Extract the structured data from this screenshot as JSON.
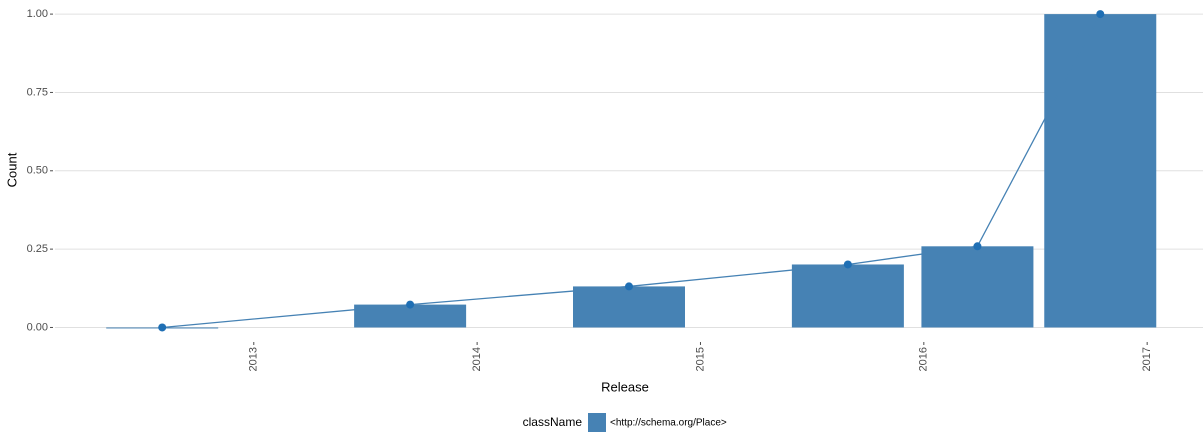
{
  "chart_data": {
    "type": "bar_line",
    "x_label": "Release",
    "y_label": "Count",
    "x": [
      2012.59,
      2013.7,
      2014.68,
      2015.66,
      2016.24,
      2016.79
    ],
    "series": [
      {
        "name": "<http://schema.org/Place>",
        "color": "#4682b4",
        "values": [
          0,
          0.073,
          0.131,
          0.201,
          0.259,
          1.0
        ]
      }
    ],
    "legend_title": "className",
    "xlim": [
      2012.11,
      2017.25
    ],
    "xticks": [
      2013,
      2014,
      2015,
      2016,
      2017
    ],
    "ylim": [
      -0.04,
      1.045
    ],
    "yticks": [
      {
        "value": 0,
        "label": "0.00"
      },
      {
        "value": 0.25,
        "label": "0.25"
      },
      {
        "value": 0.5,
        "label": "0.50"
      },
      {
        "value": 0.75,
        "label": "0.75"
      },
      {
        "value": 1,
        "label": "1.00"
      }
    ],
    "grid": true,
    "legend_position": "bottom"
  }
}
